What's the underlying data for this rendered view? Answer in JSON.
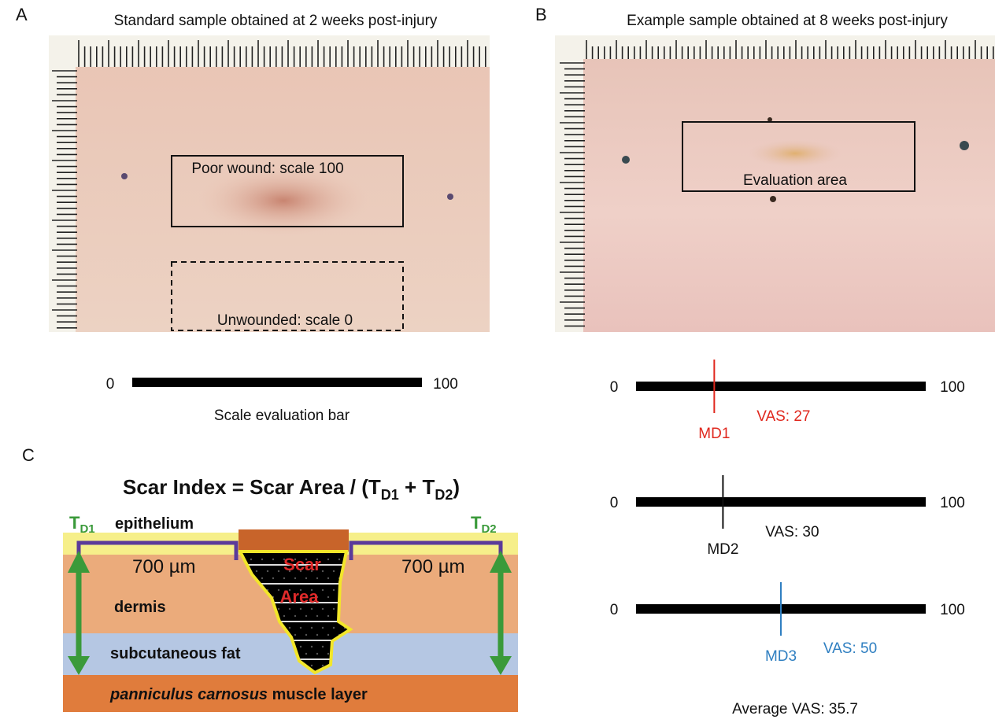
{
  "panel_a": {
    "letter": "A",
    "title": "Standard sample obtained at 2 weeks post-injury",
    "box_poor": "Poor wound: scale 100",
    "box_unwounded": "Unwounded: scale 0",
    "scale": {
      "min": 0,
      "max": 100,
      "caption": "Scale evaluation bar"
    }
  },
  "panel_b": {
    "letter": "B",
    "title": "Example sample obtained at 8 weeks post-injury",
    "box_label": "Evaluation area",
    "scales": [
      {
        "min": 0,
        "max": 100,
        "marker": "MD1",
        "value": 27,
        "value_label": "VAS: 27",
        "color": "#e0281e"
      },
      {
        "min": 0,
        "max": 100,
        "marker": "MD2",
        "value": 30,
        "value_label": "VAS: 30",
        "color": "#111111"
      },
      {
        "min": 0,
        "max": 100,
        "marker": "MD3",
        "value": 50,
        "value_label": "VAS: 50",
        "color": "#2f7fc1"
      }
    ],
    "average": "Average VAS: 35.7"
  },
  "panel_c": {
    "letter": "C",
    "formula": [
      "Scar Index = Scar Area / (T",
      "D1",
      " + T",
      "D2",
      ")"
    ],
    "td1": [
      "T",
      "D1"
    ],
    "td2": [
      "T",
      "D2"
    ],
    "epithelium": "epithelium",
    "dermis": "dermis",
    "fat": "subcutaneous fat",
    "muscle": [
      "panniculus carnosus",
      " muscle layer"
    ],
    "width_left": "700 µm",
    "width_right": "700 µm",
    "scar": [
      "Scar",
      "Area"
    ]
  }
}
